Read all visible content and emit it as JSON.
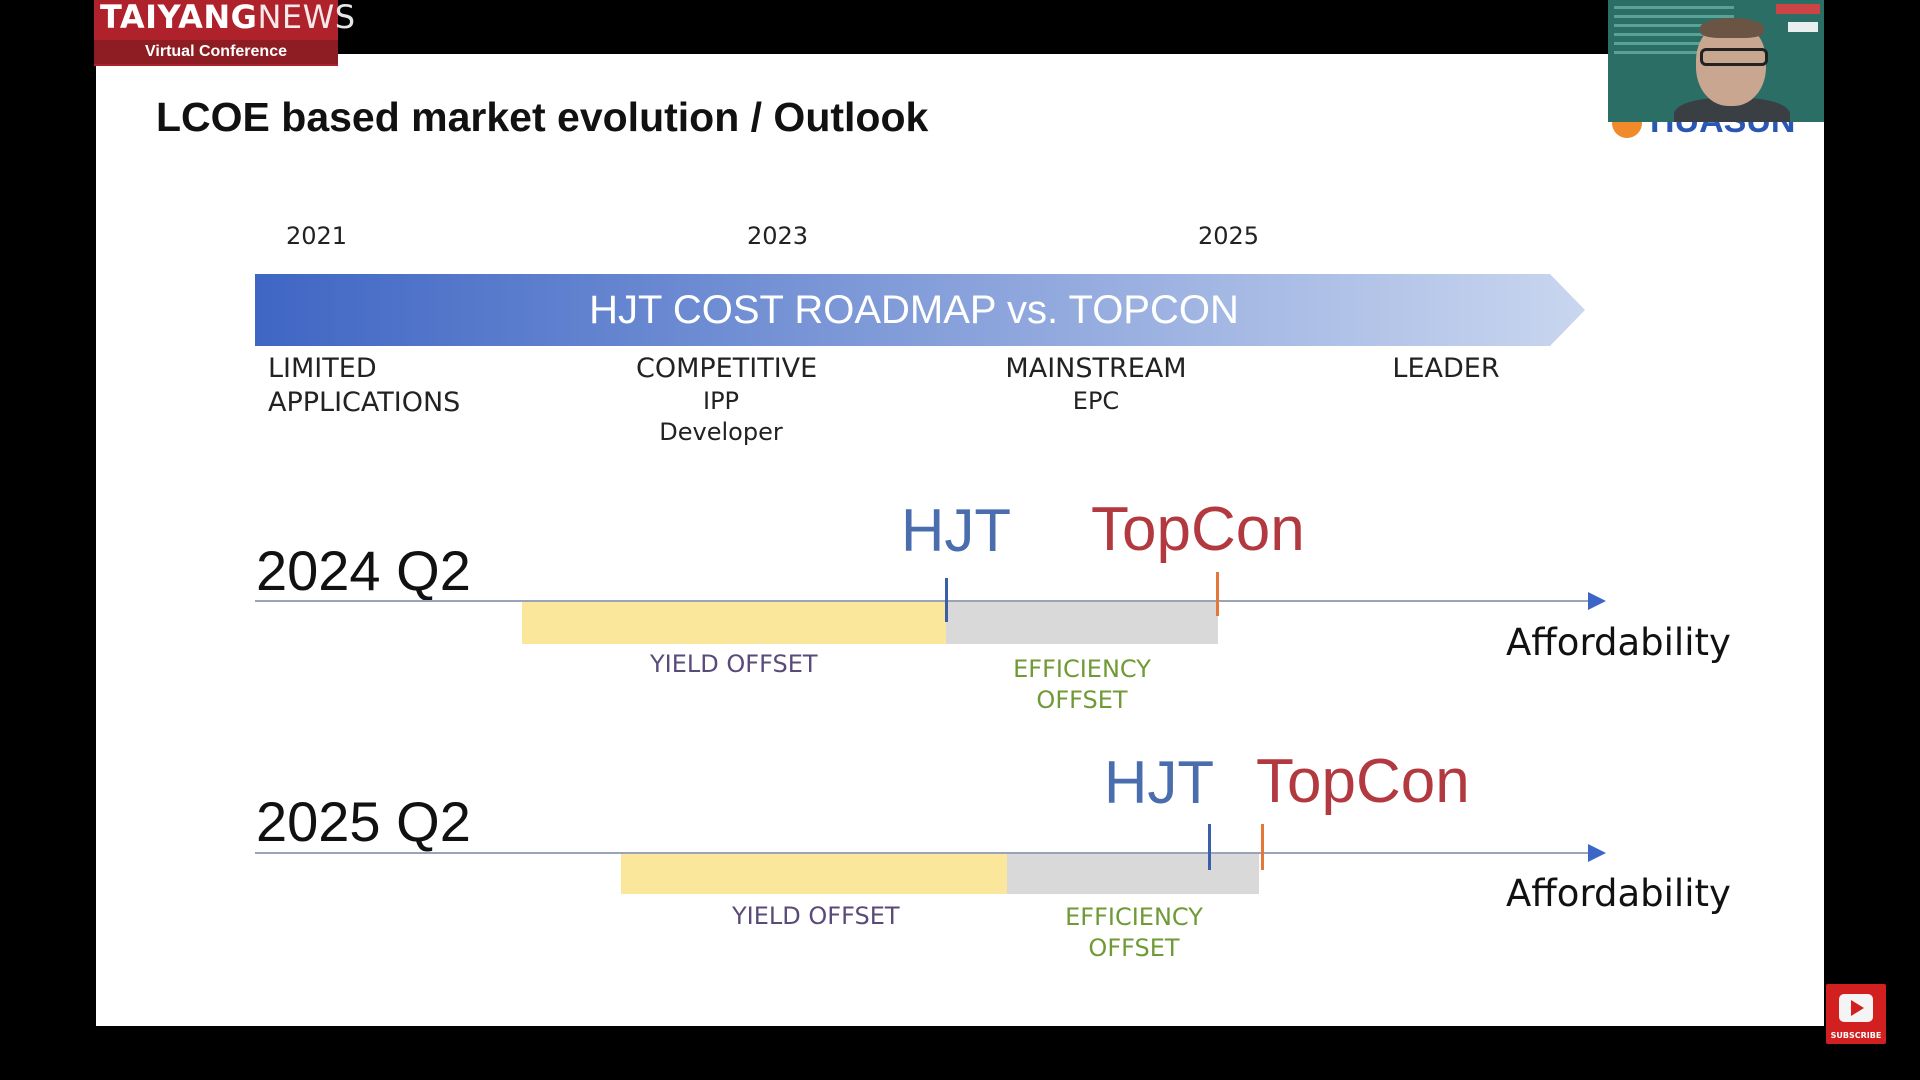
{
  "overlay": {
    "brand_bold": "TAIYANG",
    "brand_light": "NEWS",
    "subtitle": "Virtual Conference",
    "subscribe_label": "SUBSCRIBE",
    "sponsor_logo_text": "HUASUN"
  },
  "slide": {
    "title": "LCOE based market evolution / Outlook",
    "years": [
      "2021",
      "2023",
      "2025"
    ],
    "banner": "HJT COST ROADMAP vs. TOPCON",
    "stages": [
      {
        "label": "LIMITED",
        "label2": "APPLICATIONS"
      },
      {
        "label": "COMPETITIVE",
        "sub1": "IPP",
        "sub2": "Developer"
      },
      {
        "label": "MAINSTREAM",
        "sub1": "EPC"
      },
      {
        "label": "LEADER"
      }
    ],
    "rows": [
      {
        "period": "2024 Q2",
        "hjt": "HJT",
        "topcon": "TopCon",
        "axis": "Affordability",
        "yield_offset": "YIELD OFFSET",
        "efficiency_offset_1": "EFFICIENCY",
        "efficiency_offset_2": "OFFSET"
      },
      {
        "period": "2025 Q2",
        "hjt": "HJT",
        "topcon": "TopCon",
        "axis": "Affordability",
        "yield_offset": "YIELD OFFSET",
        "efficiency_offset_1": "EFFICIENCY",
        "efficiency_offset_2": "OFFSET"
      }
    ]
  },
  "colors": {
    "banner_start": "#3f66c4",
    "banner_end": "#c9d6ef",
    "hjt": "#4a6ead",
    "topcon": "#b2393f",
    "yield_bar": "#fae79b",
    "efficiency_bar": "#d9d9d9"
  }
}
